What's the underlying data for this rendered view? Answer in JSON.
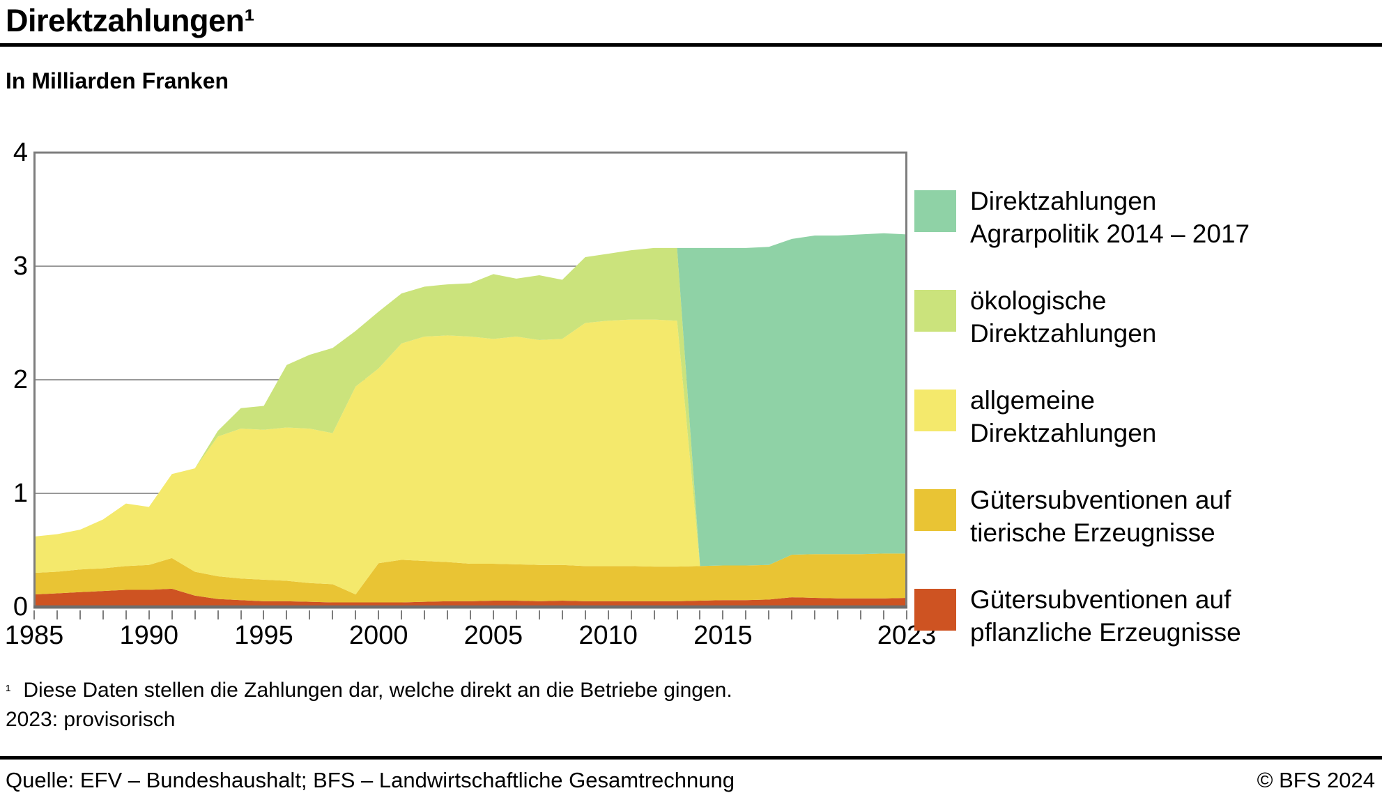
{
  "title": "Direktzahlungen¹",
  "subtitle": "In Milliarden Franken",
  "footnote": {
    "marker": "¹",
    "line1": "Diese Daten stellen die Zahlungen dar, welche direkt an die Betriebe gingen.",
    "line2": "2023: provisorisch"
  },
  "source_left": "Quelle: EFV – Bundeshaushalt; BFS – Landwirtschaftliche Gesamtrechnung",
  "source_right": "© BFS 2024",
  "chart_data": {
    "type": "area",
    "stacked": true,
    "title": "Direktzahlungen",
    "ylabel": "In Milliarden Franken",
    "ylim": [
      0,
      4
    ],
    "yticks": [
      0,
      1,
      2,
      3,
      4
    ],
    "grid": true,
    "legend_position": "right",
    "xtick_labeled_years": [
      1985,
      1990,
      1995,
      2000,
      2005,
      2010,
      2015,
      2023
    ],
    "x": [
      1985,
      1986,
      1987,
      1988,
      1989,
      1990,
      1991,
      1992,
      1993,
      1994,
      1995,
      1996,
      1997,
      1998,
      1999,
      2000,
      2001,
      2002,
      2003,
      2004,
      2005,
      2006,
      2007,
      2008,
      2009,
      2010,
      2011,
      2012,
      2013,
      2014,
      2015,
      2016,
      2017,
      2018,
      2019,
      2020,
      2021,
      2022,
      2023
    ],
    "series": [
      {
        "id": "pflanzliche",
        "name": "Gütersubventionen auf pflanzliche Erzeugnisse",
        "color": "#ce5322",
        "values": [
          0.11,
          0.12,
          0.13,
          0.14,
          0.15,
          0.15,
          0.16,
          0.1,
          0.07,
          0.06,
          0.05,
          0.05,
          0.045,
          0.04,
          0.04,
          0.04,
          0.04,
          0.045,
          0.05,
          0.05,
          0.055,
          0.055,
          0.05,
          0.055,
          0.05,
          0.05,
          0.05,
          0.05,
          0.05,
          0.055,
          0.06,
          0.06,
          0.065,
          0.085,
          0.08,
          0.075,
          0.075,
          0.075,
          0.08
        ]
      },
      {
        "id": "tierische",
        "name": "Gütersubventionen auf tierische Erzeugnisse",
        "color": "#e9c434",
        "values": [
          0.19,
          0.19,
          0.2,
          0.2,
          0.21,
          0.22,
          0.27,
          0.21,
          0.2,
          0.19,
          0.19,
          0.18,
          0.165,
          0.16,
          0.07,
          0.345,
          0.375,
          0.36,
          0.345,
          0.33,
          0.325,
          0.32,
          0.32,
          0.315,
          0.31,
          0.31,
          0.31,
          0.305,
          0.305,
          0.305,
          0.305,
          0.305,
          0.305,
          0.375,
          0.385,
          0.39,
          0.39,
          0.395,
          0.39
        ]
      },
      {
        "id": "allgemeine",
        "name": "allgemeine Direktzahlungen",
        "color": "#f4e96c",
        "values": [
          0.32,
          0.33,
          0.35,
          0.43,
          0.55,
          0.51,
          0.74,
          0.91,
          1.23,
          1.32,
          1.32,
          1.35,
          1.36,
          1.33,
          1.83,
          1.715,
          1.905,
          1.975,
          1.995,
          2.0,
          1.98,
          2.005,
          1.98,
          1.99,
          2.14,
          2.16,
          2.17,
          2.175,
          2.165,
          0,
          0,
          0,
          0,
          0,
          0,
          0,
          0,
          0,
          0
        ]
      },
      {
        "id": "oekologische",
        "name": "ökologische Direktzahlungen",
        "color": "#cbe37c",
        "values": [
          0,
          0,
          0,
          0,
          0,
          0,
          0,
          0,
          0.05,
          0.18,
          0.21,
          0.55,
          0.65,
          0.75,
          0.49,
          0.5,
          0.44,
          0.44,
          0.45,
          0.47,
          0.57,
          0.51,
          0.57,
          0.52,
          0.58,
          0.59,
          0.61,
          0.63,
          0.64,
          0,
          0,
          0,
          0,
          0,
          0,
          0,
          0,
          0,
          0
        ]
      },
      {
        "id": "agrarpolitik",
        "name": "Direktzahlungen Agrarpolitik 2014 – 2017",
        "color": "#8fd2a6",
        "values": [
          0,
          0,
          0,
          0,
          0,
          0,
          0,
          0,
          0,
          0,
          0,
          0,
          0,
          0,
          0,
          0,
          0,
          0,
          0,
          0,
          0,
          0,
          0,
          0,
          0,
          0,
          0,
          0,
          0,
          2.8,
          2.795,
          2.795,
          2.8,
          2.78,
          2.805,
          2.805,
          2.815,
          2.82,
          2.81
        ]
      }
    ],
    "legend": [
      {
        "series_id": "agrarpolitik",
        "color": "#8fd2a6",
        "lines": [
          "Direktzahlungen",
          "Agrarpolitik 2014 – 2017"
        ]
      },
      {
        "series_id": "oekologische",
        "color": "#cbe37c",
        "lines": [
          "ökologische",
          "Direktzahlungen"
        ]
      },
      {
        "series_id": "allgemeine",
        "color": "#f4e96c",
        "lines": [
          "allgemeine",
          "Direktzahlungen"
        ]
      },
      {
        "series_id": "tierische",
        "color": "#e9c434",
        "lines": [
          "Gütersubventionen auf",
          "tierische Erzeugnisse"
        ]
      },
      {
        "series_id": "pflanzliche",
        "color": "#ce5322",
        "lines": [
          "Gütersubventionen auf",
          "pflanzliche Erzeugnisse"
        ]
      }
    ],
    "style": {
      "grid_color": "#999999",
      "border_color": "#7d7d7d",
      "axis_color": "#6e6e6e"
    }
  }
}
